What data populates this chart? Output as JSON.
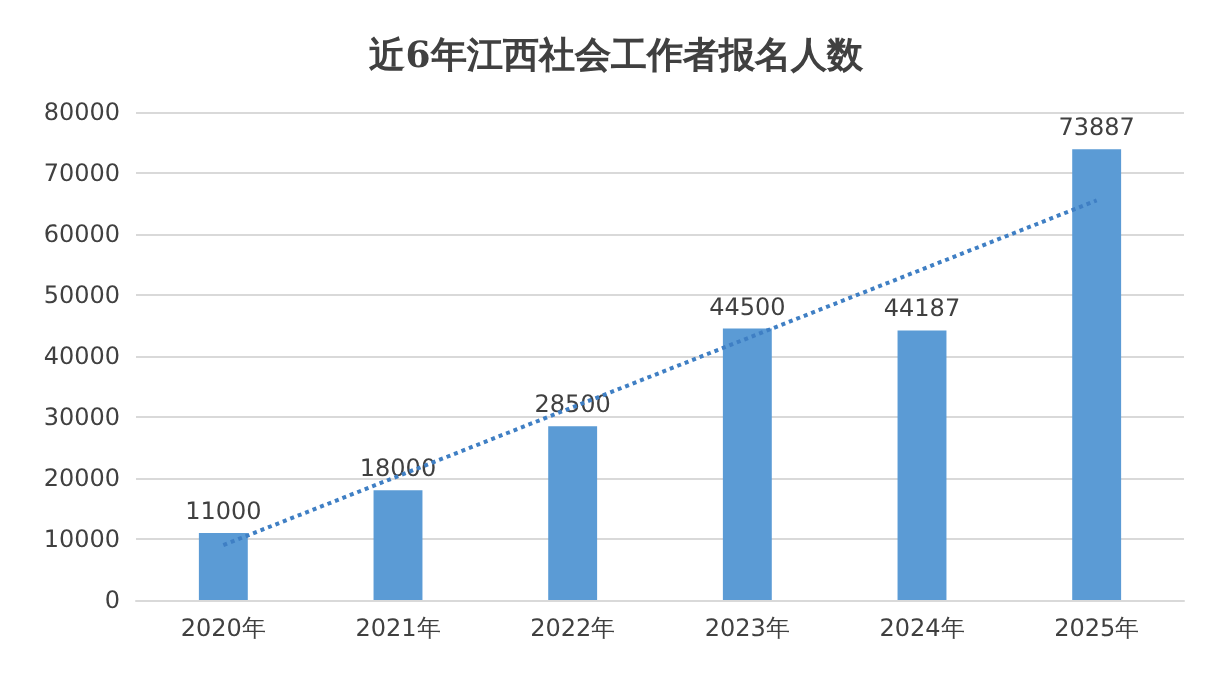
{
  "chart_data": {
    "type": "bar",
    "title": "近6年江西社会工作者报名人数",
    "categories": [
      "2020年",
      "2021年",
      "2022年",
      "2023年",
      "2024年",
      "2025年"
    ],
    "series": [
      {
        "values": [
          11000,
          18000,
          28500,
          44500,
          44187,
          73887
        ],
        "value_labels": [
          "11000",
          "18000",
          "28500",
          "44500",
          "44187",
          "73887"
        ],
        "color": "#5b9bd5"
      },
      {
        "type": "line",
        "x": [
          "2020年",
          "2025年"
        ],
        "values": [
          9000,
          65500
        ],
        "color": "#3f7fc4",
        "line_style": "dotted"
      }
    ],
    "ylim": [
      0,
      80000
    ],
    "yticks": [
      0,
      10000,
      20000,
      30000,
      40000,
      50000,
      60000,
      70000,
      80000
    ],
    "grid": "y"
  }
}
